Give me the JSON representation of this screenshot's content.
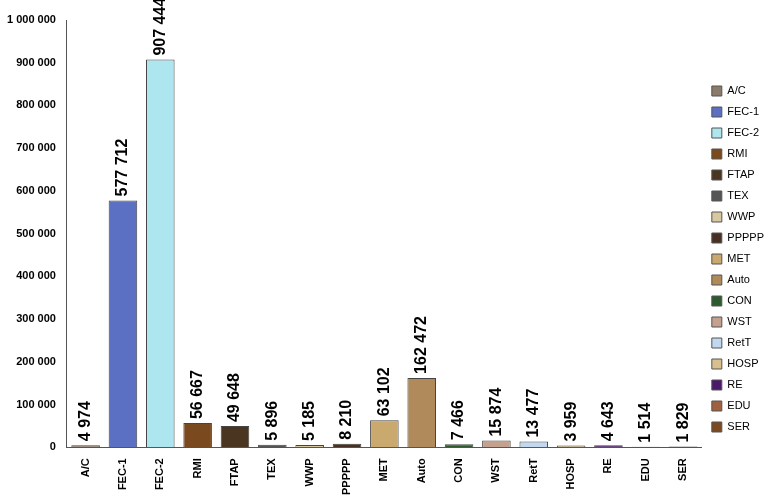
{
  "chart_data": {
    "type": "bar",
    "categories": [
      "A/C",
      "FEC-1",
      "FEC-2",
      "RMI",
      "FTAP",
      "TEX",
      "WWP",
      "PPPPP",
      "MET",
      "Auto",
      "CON",
      "WST",
      "RetT",
      "HOSP",
      "RE",
      "EDU",
      "SER"
    ],
    "values": [
      4974,
      577712,
      907444,
      56667,
      49648,
      5896,
      5185,
      8210,
      63102,
      162472,
      7466,
      15874,
      13477,
      3959,
      4643,
      1514,
      1829
    ],
    "value_labels": [
      "4 974",
      "577 712",
      "907 444",
      "56 667",
      "49 648",
      "5 896",
      "5 185",
      "8 210",
      "63 102",
      "162 472",
      "7 466",
      "15 874",
      "13 477",
      "3 959",
      "4 643",
      "1 514",
      "1 829"
    ],
    "colors": [
      "#8c7b6b",
      "#5b70c2",
      "#aee6f0",
      "#7a4a1e",
      "#4a3520",
      "#555555",
      "#d8c8a0",
      "#4a3022",
      "#c9a96e",
      "#b08a5a",
      "#2e5a30",
      "#c4a08e",
      "#c2d8f0",
      "#d8c08e",
      "#4b1a6b",
      "#a0603e",
      "#7a4a22"
    ],
    "ylim": [
      0,
      1000000
    ],
    "yticks": [
      0,
      {
        "value": 100000,
        "label": "100 000"
      },
      {
        "value": 200000,
        "label": "200 000"
      },
      {
        "value": 300000,
        "label": "300 000"
      },
      {
        "value": 400000,
        "label": "400 000"
      },
      {
        "value": 500000,
        "label": "500 000"
      },
      {
        "value": 600000,
        "label": "600 000"
      },
      {
        "value": 700000,
        "label": "700 000"
      },
      {
        "value": 800000,
        "label": "800 000"
      },
      {
        "value": 900000,
        "label": "900 000"
      },
      {
        "value": 1000000,
        "label": "1 000 000"
      }
    ],
    "grid": false,
    "legend": "right",
    "data_labels": true
  }
}
